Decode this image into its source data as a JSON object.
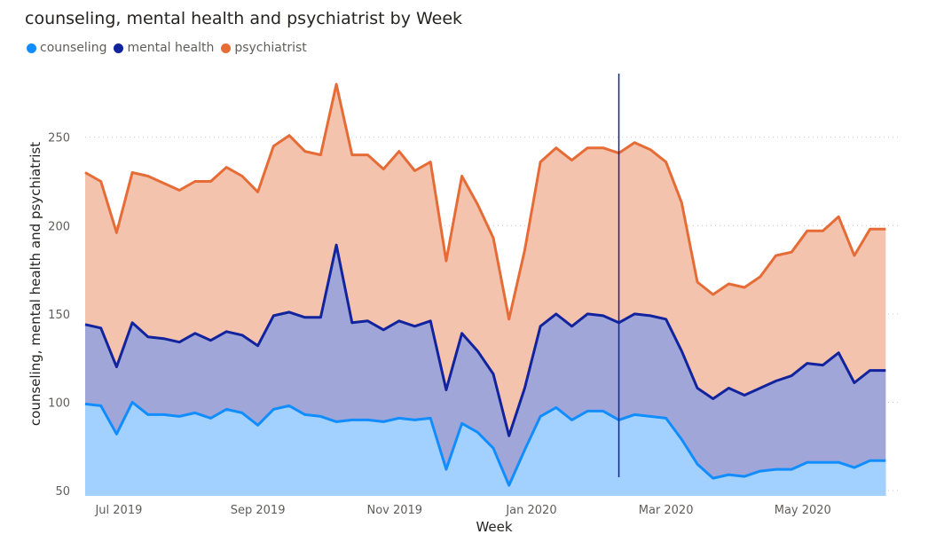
{
  "chart_data": {
    "type": "area",
    "title": "counseling, mental health and psychiatrist by Week",
    "xlabel": "Week",
    "ylabel": "counseling, mental health and psychiatrist",
    "ylim": [
      47,
      285
    ],
    "yticks": [
      50,
      100,
      150,
      200,
      250
    ],
    "xlim": [
      "2019-06-16",
      "2020-06-14"
    ],
    "xticks": [
      {
        "date": "2019-07-01",
        "label": "Jul 2019"
      },
      {
        "date": "2019-09-01",
        "label": "Sep 2019"
      },
      {
        "date": "2019-11-01",
        "label": "Nov 2019"
      },
      {
        "date": "2020-01-01",
        "label": "Jan 2020"
      },
      {
        "date": "2020-03-01",
        "label": "Mar 2020"
      },
      {
        "date": "2020-05-01",
        "label": "May 2020"
      }
    ],
    "grid": true,
    "legend_position": "top-left",
    "hover_line_date": "2020-02-09",
    "x": [
      "2019-06-16",
      "2019-06-23",
      "2019-06-30",
      "2019-07-07",
      "2019-07-14",
      "2019-07-21",
      "2019-07-28",
      "2019-08-04",
      "2019-08-11",
      "2019-08-18",
      "2019-08-25",
      "2019-09-01",
      "2019-09-08",
      "2019-09-15",
      "2019-09-22",
      "2019-09-29",
      "2019-10-06",
      "2019-10-13",
      "2019-10-20",
      "2019-10-27",
      "2019-11-03",
      "2019-11-10",
      "2019-11-17",
      "2019-11-24",
      "2019-12-01",
      "2019-12-08",
      "2019-12-15",
      "2019-12-22",
      "2019-12-29",
      "2020-01-05",
      "2020-01-12",
      "2020-01-19",
      "2020-01-26",
      "2020-02-02",
      "2020-02-09",
      "2020-02-16",
      "2020-02-23",
      "2020-03-01",
      "2020-03-08",
      "2020-03-15",
      "2020-03-22",
      "2020-03-29",
      "2020-04-05",
      "2020-04-12",
      "2020-04-19",
      "2020-04-26",
      "2020-05-03",
      "2020-05-10",
      "2020-05-17",
      "2020-05-24",
      "2020-05-31",
      "2020-06-07"
    ],
    "series": [
      {
        "name": "counseling",
        "color": "#118dff",
        "fill": "#a2d0ff",
        "values": [
          99,
          98,
          82,
          100,
          93,
          93,
          92,
          94,
          91,
          96,
          94,
          87,
          96,
          98,
          93,
          92,
          89,
          90,
          90,
          89,
          91,
          90,
          91,
          62,
          88,
          83,
          74,
          53,
          73,
          92,
          97,
          90,
          95,
          95,
          90,
          93,
          92,
          91,
          79,
          65,
          57,
          59,
          58,
          61,
          62,
          62,
          66,
          66,
          66,
          63,
          67,
          67
        ]
      },
      {
        "name": "mental health",
        "color": "#12239e",
        "fill": "#a0a6d8",
        "values": [
          144,
          142,
          120,
          145,
          137,
          136,
          134,
          139,
          135,
          140,
          138,
          132,
          149,
          151,
          148,
          148,
          189,
          145,
          146,
          141,
          146,
          143,
          146,
          107,
          139,
          129,
          116,
          81,
          108,
          143,
          150,
          143,
          150,
          149,
          145,
          150,
          149,
          147,
          129,
          108,
          102,
          108,
          104,
          108,
          112,
          115,
          122,
          121,
          128,
          111,
          118,
          118
        ]
      },
      {
        "name": "psychiatrist",
        "color": "#e66c37",
        "fill": "#f4c3ad",
        "values": [
          230,
          225,
          196,
          230,
          228,
          224,
          220,
          225,
          225,
          233,
          228,
          219,
          245,
          251,
          242,
          240,
          280,
          240,
          240,
          232,
          242,
          231,
          236,
          180,
          228,
          212,
          193,
          147,
          186,
          236,
          244,
          237,
          244,
          244,
          241,
          247,
          243,
          236,
          213,
          168,
          161,
          167,
          165,
          171,
          183,
          185,
          197,
          197,
          205,
          183,
          198,
          198
        ]
      }
    ]
  }
}
